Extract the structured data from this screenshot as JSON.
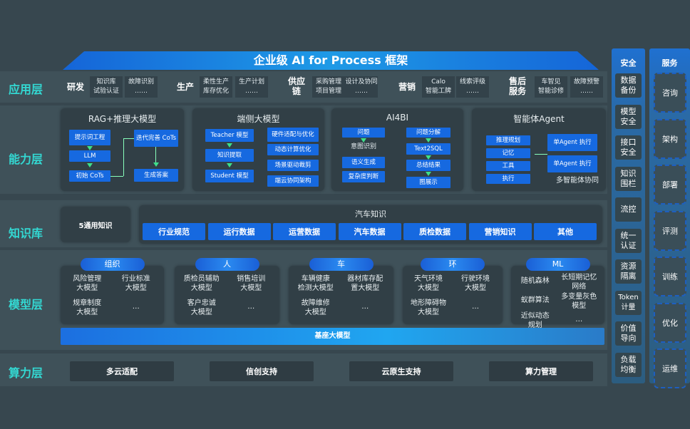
{
  "title": "企业级 AI for Process 框架",
  "layers": {
    "app": "应用层",
    "capability": "能力层",
    "knowledge": "知识库",
    "model": "模型层",
    "compute": "算力层"
  },
  "app_groups": [
    {
      "label": "研发",
      "items": [
        "知识库",
        "试验认证",
        "故障识别",
        "……"
      ]
    },
    {
      "label": "生产",
      "items": [
        "柔性生产",
        "库存优化",
        "生产计划",
        "……"
      ]
    },
    {
      "label": "供应链",
      "items": [
        "采购管理",
        "项目管理",
        "设计及协同",
        "……"
      ]
    },
    {
      "label": "营销",
      "items": [
        "Calo",
        "智能工牌",
        "线索评级",
        "……"
      ]
    },
    {
      "label": "售后服务",
      "items": [
        "车智见",
        "智能诊修",
        "故障预警",
        "……"
      ]
    }
  ],
  "capability": {
    "rag": {
      "title": "RAG+推理大模型",
      "items": [
        "提示词工程",
        "LLM",
        "初始 CoTs",
        "迭代完善 CoTs",
        "生成答案"
      ]
    },
    "edge": {
      "title": "端侧大模型",
      "items": [
        "Teacher 模型",
        "知识提取",
        "Student 模型",
        "硬件适配与优化",
        "动态计算优化",
        "场景驱动裁剪",
        "端云协同架构"
      ]
    },
    "ai4bi": {
      "title": "AI4BI",
      "items": [
        "问题",
        "意图识别",
        "语义生成",
        "复杂度判断",
        "问题分解",
        "Text2SQL",
        "总结结果",
        "图展示"
      ]
    },
    "agent": {
      "title": "智能体Agent",
      "items": [
        "推理规划",
        "记忆",
        "工具",
        "执行",
        "单Agent 执行",
        "单Agent 执行",
        "多智能体协同"
      ]
    }
  },
  "knowledge": {
    "general": "5通用知识",
    "auto_title": "汽车知识",
    "auto_items": [
      "行业规范",
      "运行数据",
      "运营数据",
      "汽车数据",
      "质检数据",
      "营销知识",
      "其他"
    ]
  },
  "model_groups": [
    {
      "label": "组织",
      "items": [
        "风险管理\n大模型",
        "行业标准\n大模型",
        "规章制度\n大模型",
        "…"
      ]
    },
    {
      "label": "人",
      "items": [
        "质检员辅助\n大模型",
        "销售培训\n大模型",
        "客户忠诚\n大模型",
        "…"
      ]
    },
    {
      "label": "车",
      "items": [
        "车辆健康\n检测大模型",
        "器材库存配\n置大模型",
        "故障维修\n大模型",
        "…"
      ]
    },
    {
      "label": "环",
      "items": [
        "天气环境\n大模型",
        "行驶环境\n大模型",
        "地形障碍物\n大模型",
        "…"
      ]
    },
    {
      "label": "ML",
      "items": [
        "随机森林",
        "长短期记忆\n网络",
        "蚁群算法",
        "多变量灰色\n模型",
        "近似动态\n规划",
        "…"
      ]
    }
  ],
  "base_model": "基座大模型",
  "compute": [
    "多云适配",
    "信创支持",
    "云原生支持",
    "算力管理"
  ],
  "security": {
    "title": "安全",
    "items": [
      "数据\n备份",
      "模型\n安全",
      "接口\n安全",
      "知识\n围栏",
      "流控",
      "统一\n认证",
      "资源\n隔离",
      "Token\n计量",
      "价值\n导向",
      "负载\n均衡"
    ]
  },
  "services": {
    "title": "服务",
    "items": [
      "咨询",
      "架构",
      "部署",
      "评测",
      "训练",
      "优化",
      "运维"
    ]
  },
  "colors": {
    "background": "#37474f",
    "accent_blue": "#1669e0",
    "layer_label": "#33d8d2",
    "arrow": "#3ee08a"
  }
}
